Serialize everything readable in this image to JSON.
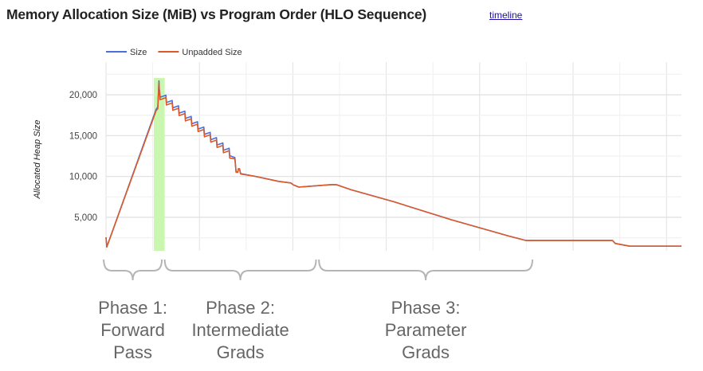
{
  "header": {
    "title": "Memory Allocation Size (MiB) vs Program Order (HLO Sequence)",
    "link": "timeline"
  },
  "chart_data": {
    "type": "line",
    "title": "Memory Allocation Size (MiB) vs Program Order (HLO Sequence)",
    "xlabel": "",
    "ylabel": "Allocated Heap Size",
    "xlim": [
      0,
      1000
    ],
    "ylim": [
      900,
      24000
    ],
    "yticks": [
      5000,
      10000,
      15000,
      20000
    ],
    "ytick_labels": [
      "5,000",
      "10,000",
      "15,000",
      "20,000"
    ],
    "grid": true,
    "legend": "top-left",
    "highlight_band": {
      "x": [
        83,
        102
      ],
      "color": "#c9f7b0"
    },
    "series": [
      {
        "name": "Size",
        "color": "#4a6fdc",
        "points": [
          [
            0,
            2550
          ],
          [
            1.4,
            1370
          ],
          [
            87,
            18200
          ],
          [
            90,
            18500
          ],
          [
            92,
            21700
          ],
          [
            93,
            20300
          ],
          [
            93,
            20600
          ],
          [
            94,
            19700
          ],
          [
            104,
            19950
          ],
          [
            105,
            19050
          ],
          [
            115,
            19300
          ],
          [
            116,
            18400
          ],
          [
            126,
            18650
          ],
          [
            127,
            17750
          ],
          [
            137,
            18000
          ],
          [
            138,
            17100
          ],
          [
            148,
            17350
          ],
          [
            149,
            16450
          ],
          [
            159,
            16700
          ],
          [
            160,
            15800
          ],
          [
            170,
            16050
          ],
          [
            171,
            15150
          ],
          [
            181,
            15400
          ],
          [
            182,
            14500
          ],
          [
            192,
            14750
          ],
          [
            193,
            13850
          ],
          [
            203,
            14100
          ],
          [
            204,
            13200
          ],
          [
            214,
            13450
          ],
          [
            215,
            12550
          ],
          [
            224,
            12300
          ],
          [
            226,
            10550
          ],
          [
            229,
            10550
          ],
          [
            230,
            10950
          ],
          [
            232,
            10950
          ],
          [
            234,
            10350
          ],
          [
            260,
            10000
          ],
          [
            300,
            9400
          ],
          [
            321,
            9200
          ],
          [
            326,
            8950
          ],
          [
            335,
            8700
          ],
          [
            391,
            9000
          ],
          [
            400,
            9000
          ],
          [
            425,
            8400
          ],
          [
            500,
            6900
          ],
          [
            600,
            4700
          ],
          [
            700,
            2700
          ],
          [
            730,
            2160
          ],
          [
            880,
            2160
          ],
          [
            885,
            1800
          ],
          [
            910,
            1470
          ],
          [
            1000,
            1470
          ]
        ]
      },
      {
        "name": "Unpadded Size",
        "color": "#dc5a2a",
        "points": [
          [
            0,
            2550
          ],
          [
            1.4,
            1370
          ],
          [
            87,
            18040
          ],
          [
            90,
            18300
          ],
          [
            92,
            21500
          ],
          [
            93,
            20000
          ],
          [
            93,
            20300
          ],
          [
            94,
            19400
          ],
          [
            104,
            19650
          ],
          [
            105,
            18750
          ],
          [
            115,
            19000
          ],
          [
            116,
            18100
          ],
          [
            126,
            18350
          ],
          [
            127,
            17450
          ],
          [
            137,
            17700
          ],
          [
            138,
            16800
          ],
          [
            148,
            17050
          ],
          [
            149,
            16150
          ],
          [
            159,
            16400
          ],
          [
            160,
            15500
          ],
          [
            170,
            15750
          ],
          [
            171,
            14850
          ],
          [
            181,
            15100
          ],
          [
            182,
            14200
          ],
          [
            192,
            14450
          ],
          [
            193,
            13550
          ],
          [
            203,
            13800
          ],
          [
            204,
            12900
          ],
          [
            214,
            13150
          ],
          [
            215,
            12250
          ],
          [
            224,
            12150
          ],
          [
            226,
            10500
          ],
          [
            229,
            10500
          ],
          [
            230,
            10900
          ],
          [
            232,
            10900
          ],
          [
            234,
            10300
          ],
          [
            260,
            10000
          ],
          [
            300,
            9400
          ],
          [
            321,
            9200
          ],
          [
            326,
            8950
          ],
          [
            335,
            8700
          ],
          [
            391,
            9000
          ],
          [
            400,
            9000
          ],
          [
            425,
            8400
          ],
          [
            500,
            6900
          ],
          [
            600,
            4700
          ],
          [
            700,
            2700
          ],
          [
            730,
            2160
          ],
          [
            880,
            2160
          ],
          [
            885,
            1800
          ],
          [
            910,
            1470
          ],
          [
            1000,
            1470
          ]
        ]
      }
    ]
  },
  "annotations": {
    "phases": [
      {
        "lines": [
          "Phase 1:",
          "Forward",
          "Pass"
        ],
        "x": [
          -4,
          97
        ]
      },
      {
        "lines": [
          "Phase 2:",
          "Intermediate",
          "Grads"
        ],
        "x": [
          102,
          365
        ]
      },
      {
        "lines": [
          "Phase 3:",
          "Parameter",
          "Grads"
        ],
        "x": [
          370,
          741
        ]
      }
    ],
    "brace_color": "#b5b5b5"
  }
}
